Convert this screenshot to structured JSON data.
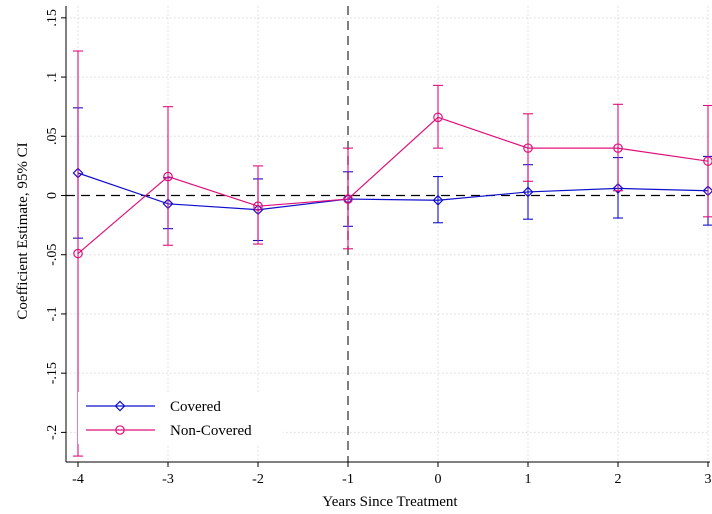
{
  "chart_data": {
    "type": "line",
    "xlabel": "Years Since Treatment",
    "ylabel": "Coefficient Estimate, 95% CI",
    "x": [
      -4,
      -3,
      -2,
      -1,
      0,
      1,
      2,
      3
    ],
    "x_tick_labels": [
      "-4",
      "-3",
      "-2",
      "-1",
      "0",
      "1",
      "2",
      "3"
    ],
    "y_ticks": [
      -0.2,
      -0.15,
      -0.1,
      -0.05,
      0,
      0.05,
      0.1,
      0.15
    ],
    "y_tick_labels": [
      "-.2",
      "-.15",
      "-.1",
      "-.05",
      "0",
      ".05",
      ".1",
      ".15"
    ],
    "xlim": [
      -4.05,
      3.0
    ],
    "ylim": [
      -0.225,
      0.16
    ],
    "grid": true,
    "reference_lines": {
      "horizontal_y": 0,
      "vertical_x": -1
    },
    "legend_position": "bottom-left",
    "series": [
      {
        "name": "Covered",
        "color": "#1010cc",
        "marker": "diamond",
        "values": [
          0.019,
          -0.007,
          -0.012,
          -0.003,
          -0.004,
          0.003,
          0.006,
          0.004
        ],
        "ci_low": [
          -0.036,
          -0.028,
          -0.038,
          -0.026,
          -0.023,
          -0.02,
          -0.019,
          -0.025
        ],
        "ci_high": [
          0.074,
          0.015,
          0.014,
          0.02,
          0.016,
          0.026,
          0.032,
          0.033
        ]
      },
      {
        "name": "Non-Covered",
        "color": "#e0107a",
        "marker": "circle",
        "values": [
          -0.049,
          0.016,
          -0.009,
          -0.003,
          0.066,
          0.04,
          0.04,
          0.029
        ],
        "ci_low": [
          -0.22,
          -0.042,
          -0.041,
          -0.045,
          0.04,
          0.012,
          0.004,
          -0.018
        ],
        "ci_high": [
          0.122,
          0.075,
          0.025,
          0.04,
          0.093,
          0.069,
          0.077,
          0.076
        ]
      }
    ]
  }
}
